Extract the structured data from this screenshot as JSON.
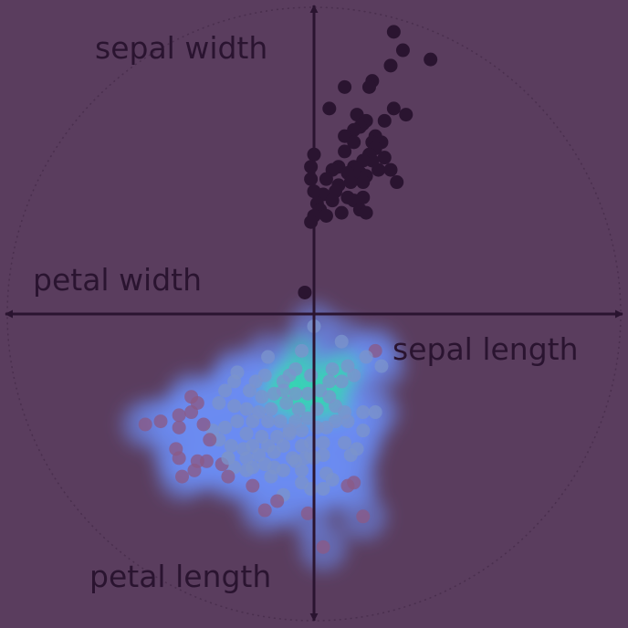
{
  "colors": {
    "background": "#5a3d5e",
    "axis": "#2a1430",
    "cluster_a_points": "#2a1430",
    "density_low": "#6c8cf2",
    "density_high": "#2ee0a8",
    "cluster_b_points": "#7b93cc"
  },
  "chart_data": {
    "type": "scatter",
    "projection": "star-coordinates",
    "grid": false,
    "legend": "none",
    "xlim": [
      -1,
      1
    ],
    "ylim": [
      -1,
      1
    ],
    "axes": [
      {
        "name": "sepal width",
        "direction": [
          0,
          1
        ]
      },
      {
        "name": "petal width",
        "direction": [
          -1,
          0
        ]
      },
      {
        "name": "sepal length",
        "direction": [
          1,
          0
        ]
      },
      {
        "name": "petal length",
        "direction": [
          0,
          -1
        ]
      }
    ],
    "series": [
      {
        "highlighted": false,
        "points": [
          [
            0.26,
            0.92
          ],
          [
            0.29,
            0.86
          ],
          [
            0.38,
            0.83
          ],
          [
            0.25,
            0.81
          ],
          [
            0.19,
            0.76
          ],
          [
            0.18,
            0.74
          ],
          [
            0.1,
            0.74
          ],
          [
            0.05,
            0.67
          ],
          [
            0.26,
            0.67
          ],
          [
            0.3,
            0.65
          ],
          [
            0.23,
            0.63
          ],
          [
            0.17,
            0.63
          ],
          [
            0.14,
            0.65
          ],
          [
            0.16,
            0.62
          ],
          [
            0.15,
            0.61
          ],
          [
            0.2,
            0.58
          ],
          [
            0.13,
            0.6
          ],
          [
            0.1,
            0.58
          ],
          [
            0.22,
            0.56
          ],
          [
            0.19,
            0.56
          ],
          [
            0.13,
            0.56
          ],
          [
            0.2,
            0.54
          ],
          [
            0.18,
            0.52
          ],
          [
            0.1,
            0.53
          ],
          [
            0.23,
            0.51
          ],
          [
            0.19,
            0.5
          ],
          [
            0.16,
            0.5
          ],
          [
            0.13,
            0.48
          ],
          [
            0.08,
            0.48
          ],
          [
            0.25,
            0.47
          ],
          [
            0.21,
            0.47
          ],
          [
            0.15,
            0.46
          ],
          [
            0.17,
            0.45
          ],
          [
            0.11,
            0.46
          ],
          [
            0.06,
            0.47
          ],
          [
            0.0,
            0.52
          ],
          [
            -0.01,
            0.48
          ],
          [
            0.27,
            0.43
          ],
          [
            0.16,
            0.43
          ],
          [
            0.12,
            0.43
          ],
          [
            0.08,
            0.42
          ],
          [
            0.04,
            0.44
          ],
          [
            0.07,
            0.4
          ],
          [
            0.11,
            0.38
          ],
          [
            0.03,
            0.39
          ],
          [
            0.16,
            0.38
          ],
          [
            -0.01,
            0.44
          ],
          [
            0.0,
            0.4
          ],
          [
            0.06,
            0.37
          ],
          [
            0.13,
            0.37
          ],
          [
            0.01,
            0.36
          ],
          [
            0.02,
            0.34
          ],
          [
            0.15,
            0.34
          ],
          [
            0.17,
            0.33
          ],
          [
            0.0,
            0.32
          ],
          [
            0.09,
            0.33
          ],
          [
            0.04,
            0.32
          ],
          [
            -0.01,
            0.3
          ],
          [
            -0.03,
            0.07
          ]
        ]
      },
      {
        "highlighted": true,
        "points": [
          [
            0.0,
            -0.04
          ],
          [
            0.09,
            -0.09
          ],
          [
            0.2,
            -0.12
          ],
          [
            0.17,
            -0.14
          ],
          [
            0.22,
            -0.17
          ],
          [
            0.06,
            -0.18
          ],
          [
            -0.04,
            -0.12
          ],
          [
            -0.01,
            -0.2
          ],
          [
            -0.08,
            -0.2
          ],
          [
            -0.15,
            -0.14
          ],
          [
            -0.25,
            -0.19
          ],
          [
            -0.26,
            -0.22
          ],
          [
            -0.19,
            -0.22
          ],
          [
            -0.16,
            -0.2
          ],
          [
            -0.1,
            -0.22
          ],
          [
            -0.06,
            -0.18
          ],
          [
            0.11,
            -0.17
          ],
          [
            0.13,
            -0.2
          ],
          [
            0.09,
            -0.22
          ],
          [
            0.05,
            -0.22
          ],
          [
            0.02,
            -0.25
          ],
          [
            -0.02,
            -0.26
          ],
          [
            -0.06,
            -0.26
          ],
          [
            -0.1,
            -0.25
          ],
          [
            -0.13,
            -0.26
          ],
          [
            -0.17,
            -0.27
          ],
          [
            -0.21,
            -0.25
          ],
          [
            -0.29,
            -0.25
          ],
          [
            -0.31,
            -0.29
          ],
          [
            -0.26,
            -0.3
          ],
          [
            -0.22,
            -0.31
          ],
          [
            -0.18,
            -0.32
          ],
          [
            -0.14,
            -0.31
          ],
          [
            -0.09,
            -0.29
          ],
          [
            -0.05,
            -0.31
          ],
          [
            0.01,
            -0.31
          ],
          [
            0.05,
            -0.27
          ],
          [
            0.07,
            -0.3
          ],
          [
            0.1,
            -0.32
          ],
          [
            -0.02,
            -0.34
          ],
          [
            -0.06,
            -0.35
          ],
          [
            -0.11,
            -0.35
          ],
          [
            -0.15,
            -0.35
          ],
          [
            -0.2,
            -0.35
          ],
          [
            -0.25,
            -0.35
          ],
          [
            -0.29,
            -0.37
          ],
          [
            -0.33,
            -0.38
          ],
          [
            -0.36,
            -0.36
          ],
          [
            -0.22,
            -0.39
          ],
          [
            -0.17,
            -0.4
          ],
          [
            -0.12,
            -0.4
          ],
          [
            -0.08,
            -0.39
          ],
          [
            -0.04,
            -0.38
          ],
          [
            0.01,
            -0.37
          ],
          [
            0.04,
            -0.37
          ],
          [
            0.07,
            -0.35
          ],
          [
            0.11,
            -0.35
          ],
          [
            0.16,
            -0.32
          ],
          [
            0.2,
            -0.32
          ],
          [
            -0.27,
            -0.43
          ],
          [
            -0.23,
            -0.44
          ],
          [
            -0.2,
            -0.43
          ],
          [
            -0.15,
            -0.43
          ],
          [
            -0.1,
            -0.43
          ],
          [
            -0.04,
            -0.43
          ],
          [
            -0.01,
            -0.42
          ],
          [
            0.03,
            -0.42
          ],
          [
            0.1,
            -0.42
          ],
          [
            0.16,
            -0.38
          ],
          [
            -0.44,
            -0.37
          ],
          [
            -0.44,
            -0.33
          ],
          [
            -0.4,
            -0.32
          ],
          [
            -0.38,
            -0.29
          ],
          [
            -0.4,
            -0.27
          ],
          [
            -0.31,
            -0.41
          ],
          [
            -0.34,
            -0.41
          ],
          [
            -0.28,
            -0.47
          ],
          [
            -0.22,
            -0.47
          ],
          [
            -0.18,
            -0.46
          ],
          [
            -0.13,
            -0.45
          ],
          [
            -0.07,
            -0.47
          ],
          [
            -0.03,
            -0.47
          ],
          [
            -0.01,
            -0.46
          ],
          [
            0.03,
            -0.46
          ],
          [
            0.12,
            -0.46
          ],
          [
            0.14,
            -0.44
          ],
          [
            -0.13,
            -0.5
          ],
          [
            -0.16,
            -0.49
          ],
          [
            -0.2,
            -0.5
          ],
          [
            -0.26,
            -0.5
          ],
          [
            -0.3,
            -0.49
          ],
          [
            -0.35,
            -0.48
          ],
          [
            -0.28,
            -0.53
          ],
          [
            -0.22,
            -0.51
          ],
          [
            -0.14,
            -0.53
          ],
          [
            -0.1,
            -0.51
          ],
          [
            -0.06,
            -0.48
          ],
          [
            -0.04,
            -0.51
          ],
          [
            0.0,
            -0.47
          ],
          [
            0.04,
            -0.52
          ],
          [
            0.06,
            -0.54
          ],
          [
            -0.04,
            -0.55
          ],
          [
            -0.01,
            -0.57
          ],
          [
            0.13,
            -0.55
          ],
          [
            0.11,
            -0.56
          ],
          [
            0.03,
            -0.57
          ],
          [
            -0.1,
            -0.59
          ],
          [
            -0.12,
            -0.61
          ],
          [
            -0.16,
            -0.64
          ],
          [
            -0.02,
            -0.65
          ],
          [
            0.16,
            -0.66
          ],
          [
            -0.55,
            -0.36
          ],
          [
            -0.5,
            -0.35
          ],
          [
            -0.45,
            -0.44
          ],
          [
            -0.44,
            -0.47
          ],
          [
            -0.38,
            -0.48
          ],
          [
            -0.39,
            -0.51
          ],
          [
            -0.43,
            -0.53
          ],
          [
            0.03,
            -0.76
          ],
          [
            -0.28,
            -0.47
          ],
          [
            -0.2,
            -0.56
          ],
          [
            -0.08,
            -0.38
          ]
        ]
      }
    ]
  }
}
